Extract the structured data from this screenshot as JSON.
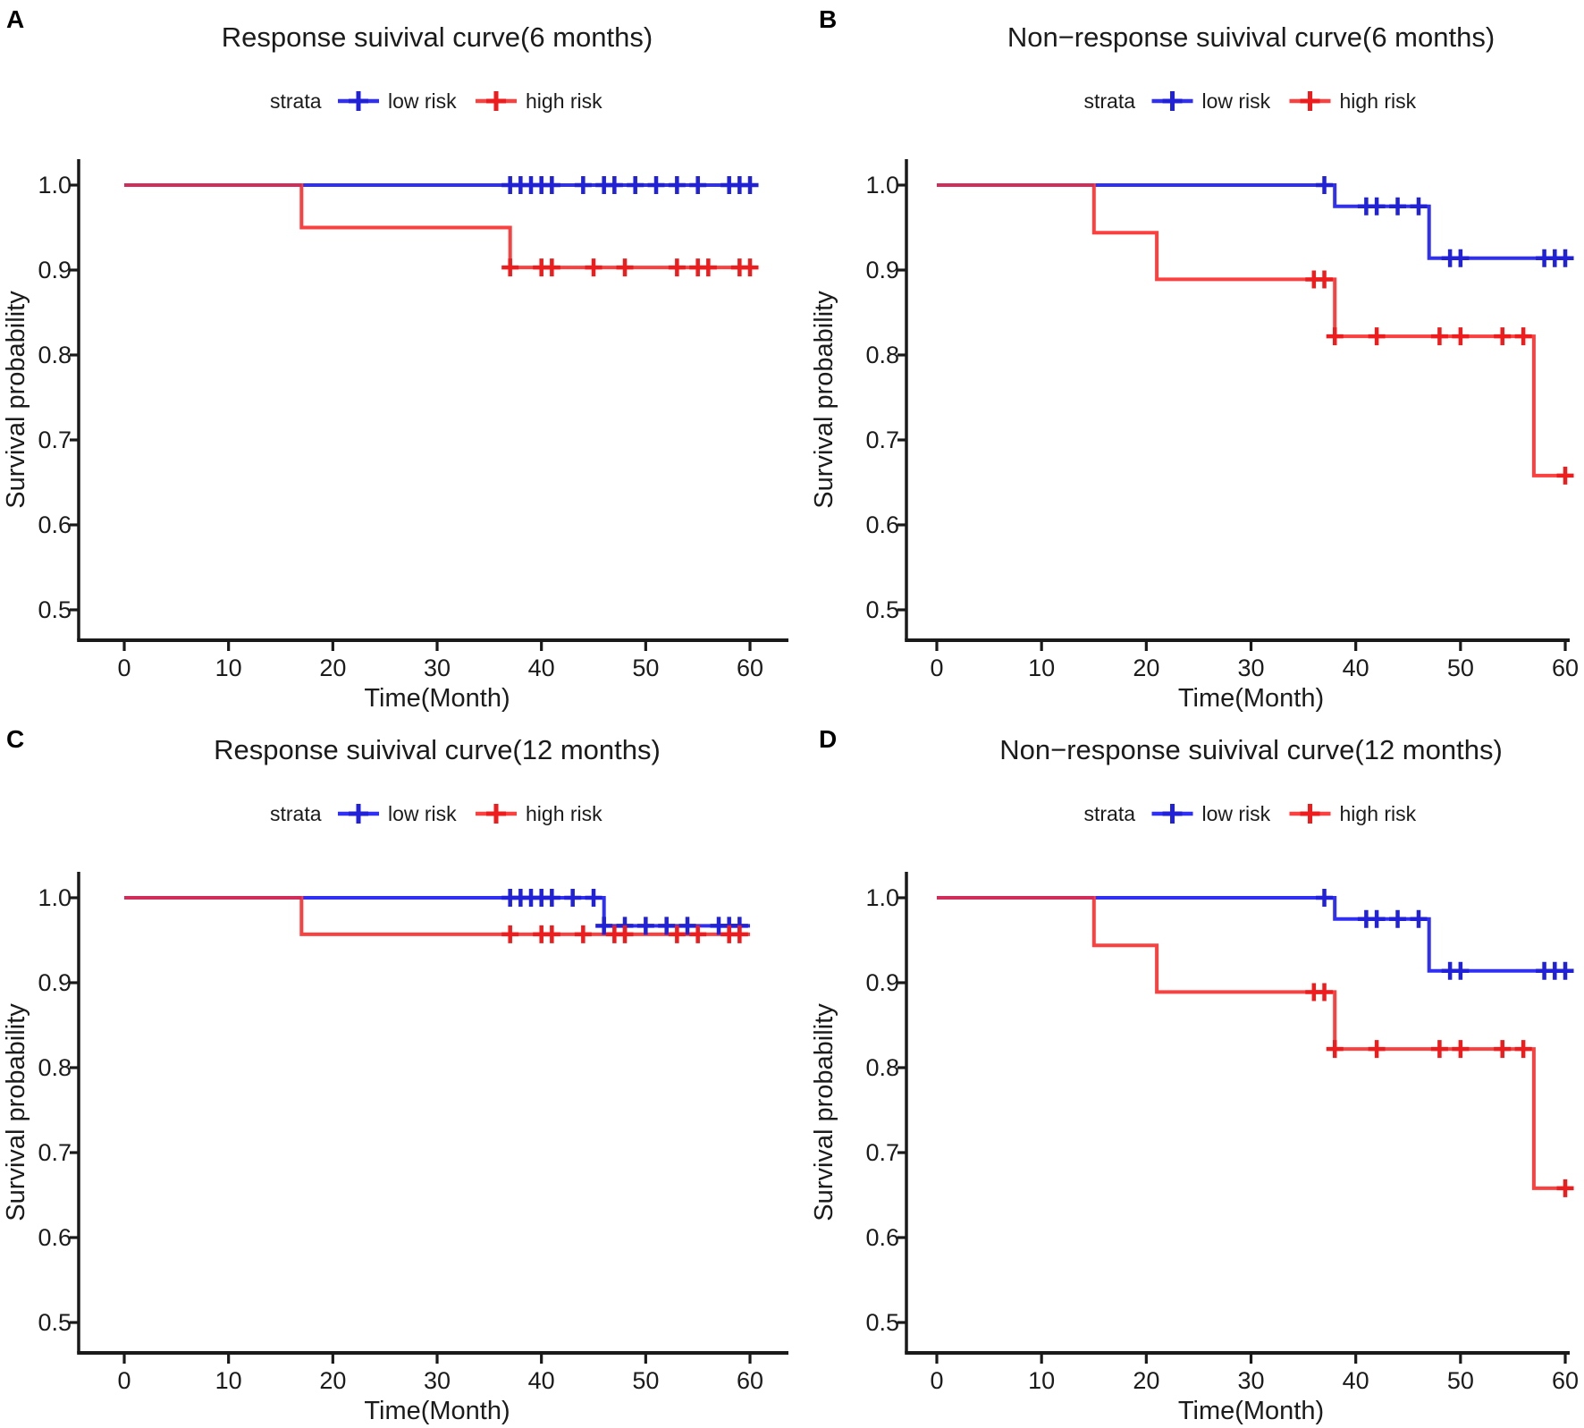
{
  "figure": {
    "colors": {
      "low_risk_line": "#2f2ff5",
      "low_risk_mark": "#2121d8",
      "high_risk_line": "#fb4040",
      "high_risk_mark": "#ee1c1c",
      "overlap_segment": "#d12d5b",
      "axis": "#1a1a1a",
      "text": "#1b1b1b"
    },
    "legend_title": "strata",
    "xlabel": "Time(Month)",
    "ylabel": "Survival probability"
  },
  "chart_data": [
    {
      "panel_label": "A",
      "type": "line",
      "subtype": "kaplan-meier-step",
      "title": "Response suivival curve(6 months)",
      "xlabel": "Time(Month)",
      "ylabel": "Survival probability",
      "xlim": [
        0,
        60
      ],
      "ylim": [
        0.5,
        1.0
      ],
      "x_ticks": [
        0,
        10,
        20,
        30,
        40,
        50,
        60
      ],
      "y_ticks": [
        "1.0",
        "0.9",
        "0.8",
        "0.7",
        "0.6",
        "0.5"
      ],
      "grid": false,
      "legend": {
        "title": "strata",
        "position": "top",
        "items": [
          {
            "label": "low risk",
            "line_color": "#2f2ff5",
            "mark_color": "#2121d8"
          },
          {
            "label": "high risk",
            "line_color": "#fb4040",
            "mark_color": "#ee1c1c"
          }
        ]
      },
      "series": [
        {
          "name": "low risk",
          "color": "#2f2ff5",
          "mark_color": "#2121d8",
          "steps": [
            [
              0,
              1.0
            ],
            [
              60,
              1.0
            ]
          ],
          "censors": [
            [
              37,
              1.0
            ],
            [
              38,
              1.0
            ],
            [
              39,
              1.0
            ],
            [
              40,
              1.0
            ],
            [
              41,
              1.0
            ],
            [
              44,
              1.0
            ],
            [
              46,
              1.0
            ],
            [
              47,
              1.0
            ],
            [
              49,
              1.0
            ],
            [
              51,
              1.0
            ],
            [
              53,
              1.0
            ],
            [
              55,
              1.0
            ],
            [
              58,
              1.0
            ],
            [
              59,
              1.0
            ],
            [
              60,
              1.0
            ]
          ]
        },
        {
          "name": "high risk",
          "color": "#fb4040",
          "mark_color": "#ee1c1c",
          "steps": [
            [
              0,
              1.0
            ],
            [
              17,
              1.0
            ],
            [
              17,
              0.95
            ],
            [
              37,
              0.95
            ],
            [
              37,
              0.903
            ],
            [
              60,
              0.903
            ]
          ],
          "censors": [
            [
              37,
              0.903
            ],
            [
              40,
              0.903
            ],
            [
              41,
              0.903
            ],
            [
              45,
              0.903
            ],
            [
              48,
              0.903
            ],
            [
              53,
              0.903
            ],
            [
              55,
              0.903
            ],
            [
              56,
              0.903
            ],
            [
              59,
              0.903
            ],
            [
              60,
              0.903
            ]
          ]
        }
      ]
    },
    {
      "panel_label": "B",
      "type": "line",
      "subtype": "kaplan-meier-step",
      "title": "Non−response suivival curve(6 months)",
      "xlabel": "Time(Month)",
      "ylabel": "Survival probability",
      "xlim": [
        0,
        60
      ],
      "ylim": [
        0.5,
        1.0
      ],
      "x_ticks": [
        0,
        10,
        20,
        30,
        40,
        50,
        60
      ],
      "y_ticks": [
        "1.0",
        "0.9",
        "0.8",
        "0.7",
        "0.6",
        "0.5"
      ],
      "grid": false,
      "legend": {
        "title": "strata",
        "position": "top",
        "items": [
          {
            "label": "low risk",
            "line_color": "#2f2ff5",
            "mark_color": "#2121d8"
          },
          {
            "label": "high risk",
            "line_color": "#fb4040",
            "mark_color": "#ee1c1c"
          }
        ]
      },
      "series": [
        {
          "name": "low risk",
          "color": "#2f2ff5",
          "mark_color": "#2121d8",
          "steps": [
            [
              0,
              1.0
            ],
            [
              38,
              1.0
            ],
            [
              38,
              0.975
            ],
            [
              47,
              0.975
            ],
            [
              47,
              0.914
            ],
            [
              60,
              0.914
            ]
          ],
          "censors": [
            [
              37,
              1.0
            ],
            [
              41,
              0.975
            ],
            [
              42,
              0.975
            ],
            [
              44,
              0.975
            ],
            [
              46,
              0.975
            ],
            [
              49,
              0.914
            ],
            [
              50,
              0.914
            ],
            [
              58,
              0.914
            ],
            [
              59,
              0.914
            ],
            [
              60,
              0.914
            ]
          ]
        },
        {
          "name": "high risk",
          "color": "#fb4040",
          "mark_color": "#ee1c1c",
          "steps": [
            [
              0,
              1.0
            ],
            [
              15,
              1.0
            ],
            [
              15,
              0.944
            ],
            [
              21,
              0.944
            ],
            [
              21,
              0.889
            ],
            [
              38,
              0.889
            ],
            [
              38,
              0.822
            ],
            [
              57,
              0.822
            ],
            [
              57,
              0.658
            ],
            [
              60,
              0.658
            ]
          ],
          "censors": [
            [
              36,
              0.889
            ],
            [
              37,
              0.889
            ],
            [
              38,
              0.822
            ],
            [
              42,
              0.822
            ],
            [
              48,
              0.822
            ],
            [
              50,
              0.822
            ],
            [
              54,
              0.822
            ],
            [
              56,
              0.822
            ],
            [
              60,
              0.658
            ]
          ]
        }
      ]
    },
    {
      "panel_label": "C",
      "type": "line",
      "subtype": "kaplan-meier-step",
      "title": "Response suivival curve(12 months)",
      "xlabel": "Time(Month)",
      "ylabel": "Survival probability",
      "xlim": [
        0,
        60
      ],
      "ylim": [
        0.5,
        1.0
      ],
      "x_ticks": [
        0,
        10,
        20,
        30,
        40,
        50,
        60
      ],
      "y_ticks": [
        "1.0",
        "0.9",
        "0.8",
        "0.7",
        "0.6",
        "0.5"
      ],
      "grid": false,
      "legend": {
        "title": "strata",
        "position": "top",
        "items": [
          {
            "label": "low risk",
            "line_color": "#2f2ff5",
            "mark_color": "#2121d8"
          },
          {
            "label": "high risk",
            "line_color": "#fb4040",
            "mark_color": "#ee1c1c"
          }
        ]
      },
      "series": [
        {
          "name": "low risk",
          "color": "#2f2ff5",
          "mark_color": "#2121d8",
          "steps": [
            [
              0,
              1.0
            ],
            [
              46,
              1.0
            ],
            [
              46,
              0.967
            ],
            [
              60,
              0.967
            ]
          ],
          "censors": [
            [
              37,
              1.0
            ],
            [
              38,
              1.0
            ],
            [
              39,
              1.0
            ],
            [
              40,
              1.0
            ],
            [
              41,
              1.0
            ],
            [
              43,
              1.0
            ],
            [
              45,
              1.0
            ],
            [
              46,
              0.967
            ],
            [
              48,
              0.967
            ],
            [
              50,
              0.967
            ],
            [
              52,
              0.967
            ],
            [
              54,
              0.967
            ],
            [
              57,
              0.967
            ],
            [
              58,
              0.967
            ],
            [
              59,
              0.967
            ]
          ]
        },
        {
          "name": "high risk",
          "color": "#fb4040",
          "mark_color": "#ee1c1c",
          "steps": [
            [
              0,
              1.0
            ],
            [
              17,
              1.0
            ],
            [
              17,
              0.957
            ],
            [
              60,
              0.957
            ]
          ],
          "censors": [
            [
              37,
              0.957
            ],
            [
              40,
              0.957
            ],
            [
              41,
              0.957
            ],
            [
              44,
              0.957
            ],
            [
              47,
              0.957
            ],
            [
              48,
              0.957
            ],
            [
              53,
              0.957
            ],
            [
              55,
              0.957
            ],
            [
              58,
              0.957
            ],
            [
              59,
              0.957
            ]
          ]
        }
      ]
    },
    {
      "panel_label": "D",
      "type": "line",
      "subtype": "kaplan-meier-step",
      "title": "Non−response suivival curve(12 months)",
      "xlabel": "Time(Month)",
      "ylabel": "Survival probability",
      "xlim": [
        0,
        60
      ],
      "ylim": [
        0.5,
        1.0
      ],
      "x_ticks": [
        0,
        10,
        20,
        30,
        40,
        50,
        60
      ],
      "y_ticks": [
        "1.0",
        "0.9",
        "0.8",
        "0.7",
        "0.6",
        "0.5"
      ],
      "grid": false,
      "legend": {
        "title": "strata",
        "position": "top",
        "items": [
          {
            "label": "low risk",
            "line_color": "#2f2ff5",
            "mark_color": "#2121d8"
          },
          {
            "label": "high risk",
            "line_color": "#fb4040",
            "mark_color": "#ee1c1c"
          }
        ]
      },
      "series": [
        {
          "name": "low risk",
          "color": "#2f2ff5",
          "mark_color": "#2121d8",
          "steps": [
            [
              0,
              1.0
            ],
            [
              38,
              1.0
            ],
            [
              38,
              0.975
            ],
            [
              47,
              0.975
            ],
            [
              47,
              0.914
            ],
            [
              60,
              0.914
            ]
          ],
          "censors": [
            [
              37,
              1.0
            ],
            [
              41,
              0.975
            ],
            [
              42,
              0.975
            ],
            [
              44,
              0.975
            ],
            [
              46,
              0.975
            ],
            [
              49,
              0.914
            ],
            [
              50,
              0.914
            ],
            [
              58,
              0.914
            ],
            [
              59,
              0.914
            ],
            [
              60,
              0.914
            ]
          ]
        },
        {
          "name": "high risk",
          "color": "#fb4040",
          "mark_color": "#ee1c1c",
          "steps": [
            [
              0,
              1.0
            ],
            [
              15,
              1.0
            ],
            [
              15,
              0.944
            ],
            [
              21,
              0.944
            ],
            [
              21,
              0.889
            ],
            [
              38,
              0.889
            ],
            [
              38,
              0.822
            ],
            [
              57,
              0.822
            ],
            [
              57,
              0.658
            ],
            [
              60,
              0.658
            ]
          ],
          "censors": [
            [
              36,
              0.889
            ],
            [
              37,
              0.889
            ],
            [
              38,
              0.822
            ],
            [
              42,
              0.822
            ],
            [
              48,
              0.822
            ],
            [
              50,
              0.822
            ],
            [
              54,
              0.822
            ],
            [
              56,
              0.822
            ],
            [
              60,
              0.658
            ]
          ]
        }
      ]
    }
  ]
}
